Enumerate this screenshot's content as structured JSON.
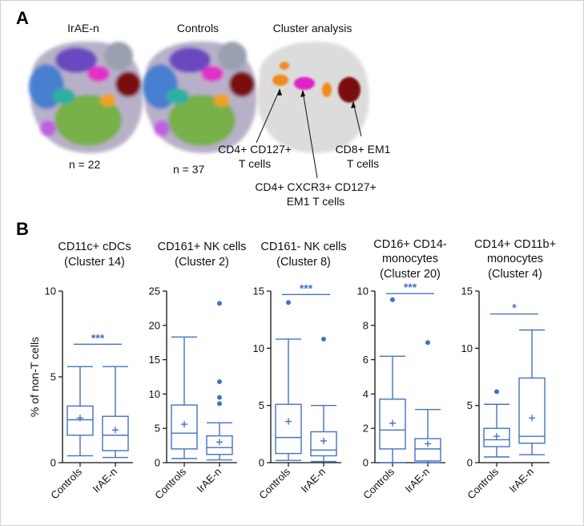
{
  "panel_a": {
    "letter": "A",
    "tsne_titles": [
      "IrAE-n",
      "Controls",
      "Cluster analysis"
    ],
    "n_labels": [
      "n = 22",
      "n = 37"
    ],
    "annotations": [
      {
        "lines": [
          "CD4+ CD127+",
          "T cells"
        ],
        "color": "#f08a1c"
      },
      {
        "lines": [
          "CD4+ CXCR3+ CD127+",
          "EM1 T cells"
        ],
        "color": "#e020c8"
      },
      {
        "lines": [
          "CD8+ EM1",
          "T cells"
        ],
        "color": "#7a0a0a"
      }
    ]
  },
  "panel_b": {
    "letter": "B",
    "y_axis_label": "% of non-T cells",
    "box_color": "#4472c4"
  },
  "chart_data": [
    {
      "type": "box",
      "title_lines": [
        "CD11c+ cDCs",
        "(Cluster 14)"
      ],
      "categories": [
        "Controls",
        "IrAE-n"
      ],
      "ylim": [
        0,
        10
      ],
      "yticks": [
        0,
        5,
        10
      ],
      "significance": "***",
      "series": [
        {
          "name": "Controls",
          "whisker_low": 0.4,
          "q1": 1.6,
          "median": 2.5,
          "q3": 3.3,
          "whisker_high": 5.6,
          "mean": 2.6,
          "outliers": []
        },
        {
          "name": "IrAE-n",
          "whisker_low": 0.3,
          "q1": 0.7,
          "median": 1.6,
          "q3": 2.7,
          "whisker_high": 5.6,
          "mean": 1.9,
          "outliers": []
        }
      ]
    },
    {
      "type": "box",
      "title_lines": [
        "CD161+ NK cells",
        "(Cluster 2)"
      ],
      "categories": [
        "Controls",
        "IrAE-n"
      ],
      "ylim": [
        0,
        25
      ],
      "yticks": [
        0,
        5,
        10,
        15,
        20,
        25
      ],
      "significance": "",
      "series": [
        {
          "name": "Controls",
          "whisker_low": 0.6,
          "q1": 2.0,
          "median": 4.3,
          "q3": 8.4,
          "whisker_high": 18.3,
          "mean": 5.6,
          "outliers": []
        },
        {
          "name": "IrAE-n",
          "whisker_low": 0.4,
          "q1": 1.2,
          "median": 2.2,
          "q3": 3.9,
          "whisker_high": 5.8,
          "mean": 3.0,
          "outliers": [
            8.6,
            9.5,
            11.8,
            23.2
          ]
        }
      ]
    },
    {
      "type": "box",
      "title_lines": [
        "CD161- NK cells",
        "(Cluster 8)"
      ],
      "categories": [
        "Controls",
        "IrAE-n"
      ],
      "ylim": [
        0,
        15
      ],
      "yticks": [
        0,
        5,
        10,
        15
      ],
      "significance": "***",
      "series": [
        {
          "name": "Controls",
          "whisker_low": 0.2,
          "q1": 0.8,
          "median": 2.2,
          "q3": 5.1,
          "whisker_high": 10.8,
          "mean": 3.6,
          "outliers": [
            14.0
          ]
        },
        {
          "name": "IrAE-n",
          "whisker_low": 0.1,
          "q1": 0.6,
          "median": 1.1,
          "q3": 2.7,
          "whisker_high": 5.0,
          "mean": 1.9,
          "outliers": [
            10.8
          ]
        }
      ]
    },
    {
      "type": "box",
      "title_lines": [
        "CD16+ CD14-",
        "monocytes",
        "(Cluster 20)"
      ],
      "categories": [
        "Controls",
        "IrAE-n"
      ],
      "ylim": [
        0,
        10
      ],
      "yticks": [
        0,
        2,
        4,
        6,
        8,
        10
      ],
      "significance": "***",
      "series": [
        {
          "name": "Controls",
          "whisker_low": 0.0,
          "q1": 0.8,
          "median": 1.9,
          "q3": 3.7,
          "whisker_high": 6.2,
          "mean": 2.3,
          "outliers": [
            9.5
          ]
        },
        {
          "name": "IrAE-n",
          "whisker_low": 0.0,
          "q1": 0.1,
          "median": 0.8,
          "q3": 1.4,
          "whisker_high": 3.1,
          "mean": 1.1,
          "outliers": [
            7.0
          ]
        }
      ]
    },
    {
      "type": "box",
      "title_lines": [
        "CD14+ CD11b+",
        "monocytes",
        "(Cluster 4)"
      ],
      "categories": [
        "Controls",
        "IrAE-n"
      ],
      "ylim": [
        0,
        15
      ],
      "yticks": [
        0,
        5,
        10,
        15
      ],
      "significance": "*",
      "series": [
        {
          "name": "Controls",
          "whisker_low": 0.5,
          "q1": 1.4,
          "median": 2.0,
          "q3": 3.0,
          "whisker_high": 5.1,
          "mean": 2.3,
          "outliers": [
            6.2
          ]
        },
        {
          "name": "IrAE-n",
          "whisker_low": 0.7,
          "q1": 1.7,
          "median": 2.3,
          "q3": 7.4,
          "whisker_high": 11.6,
          "mean": 3.9,
          "outliers": []
        }
      ]
    }
  ]
}
